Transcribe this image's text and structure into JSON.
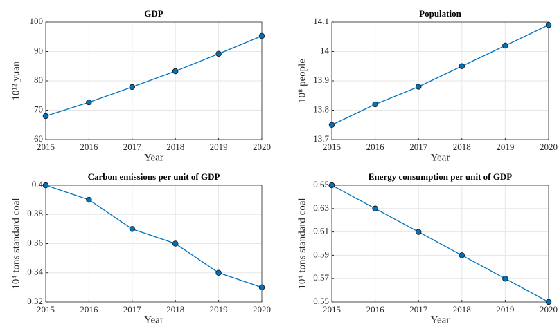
{
  "chart_data": [
    {
      "type": "line",
      "title": "GDP",
      "xlabel": "Year",
      "ylabel": "10¹² yuan",
      "x": [
        2015,
        2016,
        2017,
        2018,
        2019,
        2020
      ],
      "series": [
        {
          "color": "#0072bd",
          "marker_color": "#0072bd",
          "values": [
            68.0,
            72.7,
            77.9,
            83.3,
            89.2,
            95.3
          ]
        }
      ],
      "xlim": [
        2015,
        2020
      ],
      "xticks": [
        2015,
        2016,
        2017,
        2018,
        2019,
        2020
      ],
      "ylim": [
        60,
        100
      ],
      "yticks": [
        60,
        70,
        80,
        90,
        100
      ],
      "grid": true
    },
    {
      "type": "line",
      "title": "Population",
      "xlabel": "Year",
      "ylabel": "10⁸ people",
      "x": [
        2015,
        2016,
        2017,
        2018,
        2019,
        2020
      ],
      "series": [
        {
          "color": "#0072bd",
          "marker_color": "#0072bd",
          "values": [
            13.75,
            13.82,
            13.88,
            13.95,
            14.02,
            14.09
          ]
        }
      ],
      "xlim": [
        2015,
        2020
      ],
      "xticks": [
        2015,
        2016,
        2017,
        2018,
        2019,
        2020
      ],
      "ylim": [
        13.7,
        14.1
      ],
      "yticks": [
        13.7,
        13.8,
        13.9,
        14,
        14.1
      ],
      "grid": true
    },
    {
      "type": "line",
      "title": "Carbon emissions per unit of GDP",
      "xlabel": "Year",
      "ylabel": "10⁴ tons standard coal",
      "x": [
        2015,
        2016,
        2017,
        2018,
        2019,
        2020
      ],
      "series": [
        {
          "color": "#0072bd",
          "marker_color": "#0072bd",
          "values": [
            0.4,
            0.39,
            0.37,
            0.36,
            0.34,
            0.33
          ]
        }
      ],
      "xlim": [
        2015,
        2020
      ],
      "xticks": [
        2015,
        2016,
        2017,
        2018,
        2019,
        2020
      ],
      "ylim": [
        0.32,
        0.4
      ],
      "yticks": [
        0.32,
        0.34,
        0.36,
        0.38,
        0.4
      ],
      "grid": true
    },
    {
      "type": "line",
      "title": "Energy consumption per unit of GDP",
      "xlabel": "Year",
      "ylabel": "10⁴ tons standard coal",
      "x": [
        2015,
        2016,
        2017,
        2018,
        2019,
        2020
      ],
      "series": [
        {
          "color": "#0072bd",
          "marker_color": "#0072bd",
          "values": [
            0.65,
            0.63,
            0.61,
            0.59,
            0.57,
            0.55
          ]
        }
      ],
      "xlim": [
        2015,
        2020
      ],
      "xticks": [
        2015,
        2016,
        2017,
        2018,
        2019,
        2020
      ],
      "ylim": [
        0.55,
        0.65
      ],
      "yticks": [
        0.55,
        0.57,
        0.59,
        0.61,
        0.63,
        0.65
      ],
      "grid": true
    }
  ]
}
